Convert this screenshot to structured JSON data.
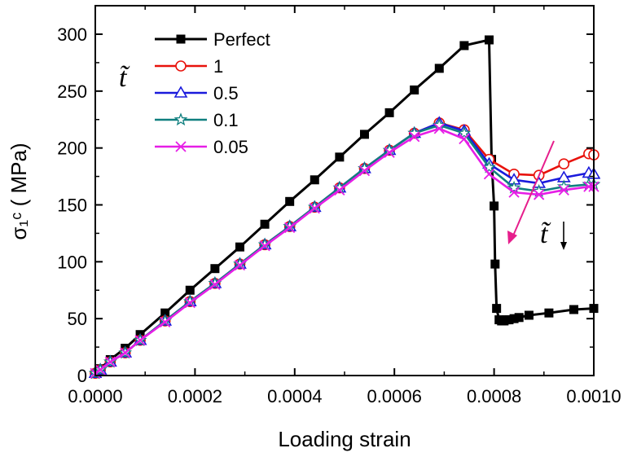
{
  "chart_data": {
    "type": "line",
    "xlabel": "Loading strain",
    "ylabel": "σ₁ᶜ ( MPa)",
    "xlim": [
      0,
      0.001
    ],
    "ylim": [
      0,
      320
    ],
    "x_ticks": [
      "0.0000",
      "0.0002",
      "0.0004",
      "0.0006",
      "0.0008",
      "0.0010"
    ],
    "y_ticks": [
      "0",
      "50",
      "100",
      "150",
      "200",
      "250",
      "300"
    ],
    "legend_title": "t̃",
    "legend_position": "top-left",
    "annotation": "t̃",
    "series": [
      {
        "name": "Perfect",
        "color": "#000000",
        "marker": "square-filled",
        "x": [
          0,
          1e-05,
          3e-05,
          6e-05,
          9e-05,
          0.00014,
          0.00019,
          0.00024,
          0.00029,
          0.00034,
          0.00039,
          0.00044,
          0.00049,
          0.00054,
          0.00059,
          0.00064,
          0.00069,
          0.00074,
          0.00079,
          0.000795,
          0.0008,
          0.000802,
          0.000805,
          0.00081,
          0.000815,
          0.00082,
          0.000825,
          0.00083,
          0.00084,
          0.00085,
          0.00087,
          0.00091,
          0.00096,
          0.001
        ],
        "y": [
          2,
          6,
          14,
          24,
          36,
          55,
          75,
          94,
          113,
          133,
          153,
          172,
          192,
          212,
          231,
          251,
          270,
          290,
          295,
          190,
          149,
          98,
          59,
          49,
          48,
          48,
          49,
          49,
          50,
          51,
          53,
          55,
          58,
          59
        ]
      },
      {
        "name": "1",
        "color": "#e8120c",
        "marker": "circle-open",
        "x": [
          0,
          1e-05,
          3e-05,
          6e-05,
          9e-05,
          0.00014,
          0.00019,
          0.00024,
          0.00029,
          0.00034,
          0.00039,
          0.00044,
          0.00049,
          0.00054,
          0.00059,
          0.00064,
          0.00069,
          0.00074,
          0.00079,
          0.00084,
          0.00089,
          0.00094,
          0.00099,
          0.001
        ],
        "y": [
          2,
          5,
          12,
          20,
          31,
          48,
          65,
          81,
          98,
          115,
          131,
          148,
          165,
          182,
          198,
          213,
          222,
          216,
          190,
          177,
          176,
          186,
          195,
          194
        ]
      },
      {
        "name": "0.5",
        "color": "#1a1adc",
        "marker": "triangle-open",
        "x": [
          0,
          1e-05,
          3e-05,
          6e-05,
          9e-05,
          0.00014,
          0.00019,
          0.00024,
          0.00029,
          0.00034,
          0.00039,
          0.00044,
          0.00049,
          0.00054,
          0.00059,
          0.00064,
          0.00069,
          0.00074,
          0.00079,
          0.00084,
          0.00089,
          0.00094,
          0.00099,
          0.001
        ],
        "y": [
          2,
          5,
          12,
          20,
          31,
          48,
          65,
          81,
          98,
          115,
          131,
          148,
          165,
          182,
          198,
          213,
          222,
          215,
          186,
          172,
          169,
          174,
          178,
          177
        ]
      },
      {
        "name": "0.1",
        "color": "#0f7f7f",
        "marker": "star-open",
        "x": [
          0,
          1e-05,
          3e-05,
          6e-05,
          9e-05,
          0.00014,
          0.00019,
          0.00024,
          0.00029,
          0.00034,
          0.00039,
          0.00044,
          0.00049,
          0.00054,
          0.00059,
          0.00064,
          0.00069,
          0.00074,
          0.00079,
          0.00084,
          0.00089,
          0.00094,
          0.00099,
          0.001
        ],
        "y": [
          2,
          5,
          12,
          20,
          31,
          48,
          65,
          81,
          98,
          115,
          131,
          148,
          165,
          182,
          198,
          213,
          220,
          213,
          183,
          165,
          162,
          166,
          168,
          168
        ]
      },
      {
        "name": "0.05",
        "color": "#e61ee6",
        "marker": "x",
        "x": [
          0,
          1e-05,
          3e-05,
          6e-05,
          9e-05,
          0.00014,
          0.00019,
          0.00024,
          0.00029,
          0.00034,
          0.00039,
          0.00044,
          0.00049,
          0.00054,
          0.00059,
          0.00064,
          0.00069,
          0.00074,
          0.00079,
          0.00084,
          0.00089,
          0.00094,
          0.00099,
          0.001
        ],
        "y": [
          2,
          5,
          12,
          20,
          31,
          47,
          64,
          80,
          97,
          114,
          130,
          147,
          163,
          180,
          196,
          210,
          217,
          208,
          177,
          161,
          159,
          163,
          166,
          166
        ]
      }
    ]
  }
}
